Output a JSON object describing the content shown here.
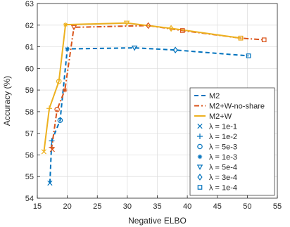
{
  "chart_data": {
    "type": "line",
    "title": "",
    "xlabel": "Negative ELBO",
    "ylabel": "Accuracy (%)",
    "xlim": [
      15,
      55
    ],
    "ylim": [
      54,
      63
    ],
    "xticks": [
      15,
      20,
      25,
      30,
      35,
      40,
      45,
      50,
      55
    ],
    "yticks": [
      54,
      55,
      56,
      57,
      58,
      59,
      60,
      61,
      62,
      63
    ],
    "grid": true,
    "legend_position": "bottom-right",
    "lambda_values": [
      "1e-1",
      "1e-2",
      "5e-3",
      "1e-3",
      "5e-4",
      "3e-4",
      "1e-4"
    ],
    "markers": [
      "x",
      "+",
      "o",
      "*",
      "v",
      "d",
      "s"
    ],
    "series": [
      {
        "name": "M2",
        "color": "#0072BD",
        "dash": "dashed",
        "x": [
          17.1,
          17.4,
          18.8,
          20.0,
          31.2,
          38.0,
          50.2
        ],
        "y": [
          54.7,
          56.65,
          57.6,
          60.9,
          60.95,
          60.85,
          60.58
        ]
      },
      {
        "name": "M2+W-no-share",
        "color": "#D95319",
        "dash": "dashdot",
        "x": [
          17.5,
          17.4,
          18.3,
          19.6,
          21.1,
          33.5,
          39.2
        ],
        "y": [
          56.25,
          56.35,
          58.1,
          59.0,
          61.9,
          61.98,
          61.75
        ],
        "x_extra": [
          48.9,
          52.8
        ],
        "y_extra": [
          61.4,
          61.32
        ]
      },
      {
        "name": "M2+W",
        "color": "#EDB120",
        "dash": "solid",
        "x": [
          16.1,
          17.0,
          18.6,
          19.7,
          29.9,
          37.3,
          48.9
        ],
        "y": [
          56.15,
          58.15,
          59.4,
          62.02,
          62.1,
          61.85,
          61.4
        ]
      }
    ],
    "legend": [
      {
        "kind": "line",
        "label": "M2",
        "series": 0
      },
      {
        "kind": "line",
        "label": "M2+W-no-share",
        "series": 1
      },
      {
        "kind": "line",
        "label": "M2+W",
        "series": 2
      },
      {
        "kind": "marker",
        "marker": "x",
        "label": "λ = 1e-1"
      },
      {
        "kind": "marker",
        "marker": "+",
        "label": "λ = 1e-2"
      },
      {
        "kind": "marker",
        "marker": "o",
        "label": "λ = 5e-3"
      },
      {
        "kind": "marker",
        "marker": "*",
        "label": "λ = 1e-3"
      },
      {
        "kind": "marker",
        "marker": "v",
        "label": "λ = 5e-4"
      },
      {
        "kind": "marker",
        "marker": "d",
        "label": "λ = 3e-4"
      },
      {
        "kind": "marker",
        "marker": "s",
        "label": "λ = 1e-4"
      }
    ]
  }
}
